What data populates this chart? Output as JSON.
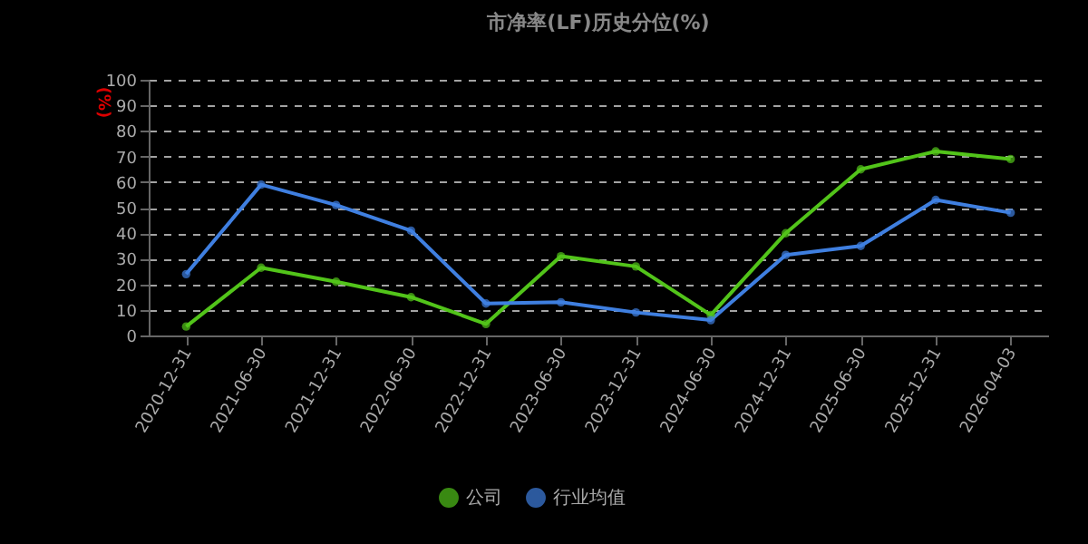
{
  "chart_data": {
    "type": "line",
    "title": "市净率(LF)历史分位(%)",
    "ylabel": "(%)",
    "categories": [
      "2020-12-31",
      "2021-06-30",
      "2021-12-31",
      "2022-06-30",
      "2022-12-31",
      "2023-06-30",
      "2023-12-31",
      "2024-06-30",
      "2024-12-31",
      "2025-06-30",
      "2025-12-31",
      "2026-04-03"
    ],
    "series": [
      {
        "name": "公司",
        "color": "#52c41a",
        "values": [
          3.5,
          26.5,
          21,
          15,
          4.5,
          31,
          27,
          8,
          40,
          65,
          72,
          69
        ]
      },
      {
        "name": "行业均值",
        "color": "#3f7fe0",
        "values": [
          24,
          59,
          51,
          41,
          12.5,
          13,
          9,
          6,
          31.5,
          35,
          53,
          48
        ]
      }
    ],
    "ylim": [
      0,
      100
    ],
    "yticks": [
      0,
      10,
      20,
      30,
      40,
      50,
      60,
      70,
      80,
      90,
      100
    ],
    "grid": "y",
    "legend": "bottom",
    "marker": "circle",
    "line_style": "solid"
  }
}
